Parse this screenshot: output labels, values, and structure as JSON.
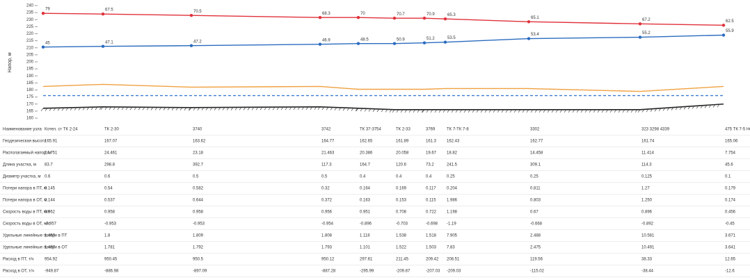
{
  "chart_data": {
    "type": "line",
    "ylabel": "Напор, м",
    "ylim": [
      160,
      240
    ],
    "yticks": [
      160,
      165,
      170,
      175,
      180,
      185,
      190,
      195,
      200,
      205,
      210,
      215,
      220,
      225,
      230,
      235,
      240
    ],
    "series": [
      {
        "color": "#e0303a",
        "values": [
          234.5,
          234,
          233,
          231.5,
          231.5,
          231,
          231,
          230.5,
          228.5,
          227,
          226
        ],
        "point_labels": [
          "79",
          "67.5",
          "70.5",
          "68.3",
          "70",
          "70.7",
          "70.9",
          "65.3",
          "65.1",
          "67.2",
          "62.5"
        ]
      },
      {
        "color": "#2a6bbf",
        "values": [
          210.5,
          211,
          211.5,
          212.5,
          213,
          213,
          213.5,
          214,
          216.5,
          217.5,
          219
        ],
        "point_labels": [
          "45",
          "47.1",
          "47.2",
          "46.9",
          "48.5",
          "50.9",
          "51.2",
          "53.5",
          "53.4",
          "55.2",
          "55.9"
        ]
      },
      {
        "color": "#f0a040",
        "values": [
          182.5,
          184,
          182,
          182.5,
          180.5,
          180.5,
          180.5,
          181,
          181,
          179,
          182.5
        ]
      },
      {
        "color": "#3a7bd0",
        "dash": true,
        "values": [
          176,
          176,
          176,
          176,
          176,
          176,
          176,
          176,
          176,
          176,
          176
        ]
      },
      {
        "color": "#222222",
        "hatch": true,
        "values": [
          167,
          168,
          167.5,
          168,
          167,
          166,
          166,
          166,
          166,
          166,
          170
        ]
      }
    ]
  },
  "table": {
    "rows": [
      [
        "Наименование узла",
        "Котел. ст ТК 2-24",
        "ТК 2-30",
        "3740",
        "3742",
        "ТК 37-3754",
        "ТК 2-33",
        "3769",
        "ТК 7-ТК 7-8",
        "3302",
        "323 3298 4339",
        "475 ТК 7-5 Некрасова 4"
      ],
      [
        "Геодезическая высота",
        "165.91",
        "167.07",
        "163.62",
        "164.77",
        "162.65",
        "161.89",
        "161.3",
        "162.43",
        "162.77",
        "161.74",
        "165.06"
      ],
      [
        "Располагаемый напор, м",
        "24.751",
        "24.461",
        "23.18",
        "21.463",
        "20.386",
        "20.058",
        "19.67",
        "18.82",
        "14.458",
        "11.414",
        "7.754"
      ],
      [
        "Длина участка, м",
        "83.7",
        "298.8",
        "392.7",
        "117.3",
        "164.7",
        "120.6",
        "73.2",
        "241.5",
        "309.1",
        "114.3",
        "45.6"
      ],
      [
        "Диаметр участка, м",
        "0.6",
        "0.6",
        "0.5",
        "0.5",
        "0.4",
        "0.4",
        "0.4",
        "0.25",
        "0.25",
        "0.125",
        "0.1"
      ],
      [
        "Потери напора в ПТ, м",
        "0.145",
        "0.54",
        "0.582",
        "0.32",
        "0.164",
        "0.169",
        "0.117",
        "0.204",
        "0.811",
        "1.27",
        "0.179"
      ],
      [
        "Потери напора в ОТ, м",
        "0.144",
        "0.537",
        "0.644",
        "0.372",
        "0.163",
        "0.153",
        "0.115",
        "1.986",
        "0.803",
        "1.250",
        "0.174"
      ],
      [
        "Скорость воды в ПТ, м/с",
        "0.962",
        "0.958",
        "0.958",
        "0.956",
        "0.951",
        "0.708",
        "0.722",
        "1.198",
        "0.67",
        "0.896",
        "0.456"
      ],
      [
        "Скорость воды в ОТ, м/с",
        "-0.957",
        "-0.953",
        "-0.953",
        "-0.954",
        "-0.896",
        "-0.703",
        "-0.698",
        "-1.19",
        "-0.668",
        "-0.892",
        "-0.45"
      ],
      [
        "Удельные линейные потери в ПТ",
        "1.453",
        "1.8",
        "1.809",
        "1.808",
        "1.118",
        "1.538",
        "1.518",
        "7.905",
        "2.488",
        "10.581",
        "3.671"
      ],
      [
        "Удельные линейные потери в ОТ",
        "1.437",
        "1.781",
        "1.792",
        "1.793",
        "1.101",
        "1.522",
        "1.503",
        "7.83",
        "2.475",
        "10.491",
        "3.641"
      ],
      [
        "Расход в ПТ, т/ч",
        "954.92",
        "950.45",
        "950.5",
        "950.12",
        "297.61",
        "211.45",
        "209.42",
        "208.51",
        "119.56",
        "38.33",
        "12.65"
      ],
      [
        "Расход в ОТ, т/ч",
        "-949.87",
        "-886.98",
        "-897.09",
        "-887.28",
        "-295.99",
        "-209.87",
        "-207.03",
        "-209.03",
        "-115.02",
        "-38.44",
        "-12.6"
      ]
    ]
  }
}
